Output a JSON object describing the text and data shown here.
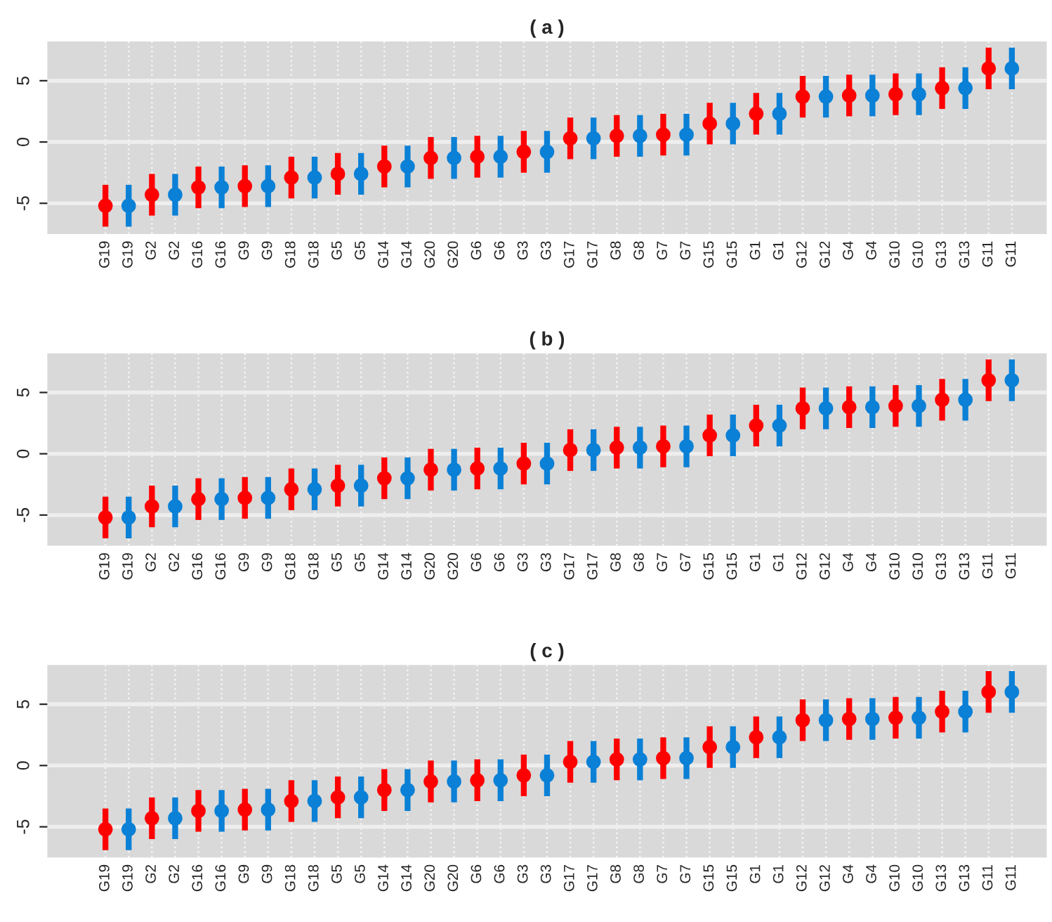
{
  "chart_data": [
    {
      "type": "scatter",
      "title": "( a )",
      "categories": [
        "G19",
        "G19",
        "G2",
        "G2",
        "G16",
        "G16",
        "G9",
        "G9",
        "G18",
        "G18",
        "G5",
        "G5",
        "G14",
        "G14",
        "G20",
        "G20",
        "G6",
        "G6",
        "G3",
        "G3",
        "G17",
        "G17",
        "G8",
        "G8",
        "G7",
        "G7",
        "G15",
        "G15",
        "G1",
        "G1",
        "G12",
        "G12",
        "G4",
        "G4",
        "G10",
        "G10",
        "G13",
        "G13",
        "G11",
        "G11"
      ],
      "values": [
        -5.2,
        -5.2,
        -4.3,
        -4.3,
        -3.7,
        -3.7,
        -3.6,
        -3.6,
        -2.9,
        -2.9,
        -2.6,
        -2.6,
        -2.0,
        -2.0,
        -1.3,
        -1.3,
        -1.2,
        -1.2,
        -0.8,
        -0.8,
        0.3,
        0.3,
        0.5,
        0.5,
        0.6,
        0.6,
        1.5,
        1.5,
        2.3,
        2.3,
        3.7,
        3.7,
        3.8,
        3.8,
        3.9,
        3.9,
        4.4,
        4.4,
        6.0,
        6.0
      ],
      "colors": [
        "#ff0000",
        "#0a80d6",
        "#ff0000",
        "#0a80d6",
        "#ff0000",
        "#0a80d6",
        "#ff0000",
        "#0a80d6",
        "#ff0000",
        "#0a80d6",
        "#ff0000",
        "#0a80d6",
        "#ff0000",
        "#0a80d6",
        "#ff0000",
        "#0a80d6",
        "#ff0000",
        "#0a80d6",
        "#ff0000",
        "#0a80d6",
        "#ff0000",
        "#0a80d6",
        "#ff0000",
        "#0a80d6",
        "#ff0000",
        "#0a80d6",
        "#ff0000",
        "#0a80d6",
        "#ff0000",
        "#0a80d6",
        "#ff0000",
        "#0a80d6",
        "#ff0000",
        "#0a80d6",
        "#ff0000",
        "#0a80d6",
        "#ff0000",
        "#0a80d6",
        "#ff0000",
        "#0a80d6"
      ],
      "errors": [
        1.7,
        1.7,
        1.7,
        1.7,
        1.7,
        1.7,
        1.7,
        1.7,
        1.7,
        1.7,
        1.7,
        1.7,
        1.7,
        1.7,
        1.7,
        1.7,
        1.7,
        1.7,
        1.7,
        1.7,
        1.7,
        1.7,
        1.7,
        1.7,
        1.7,
        1.7,
        1.7,
        1.7,
        1.7,
        1.7,
        1.7,
        1.7,
        1.7,
        1.7,
        1.7,
        1.7,
        1.7,
        1.7,
        1.7,
        1.7
      ],
      "ylim": [
        -7.5,
        8.2
      ],
      "yticks": [
        -5,
        0,
        5
      ],
      "grid": true,
      "marker": "circle"
    },
    {
      "type": "scatter",
      "title": "( b )",
      "categories": [
        "G19",
        "G19",
        "G2",
        "G2",
        "G16",
        "G16",
        "G9",
        "G9",
        "G18",
        "G18",
        "G5",
        "G5",
        "G14",
        "G14",
        "G20",
        "G20",
        "G6",
        "G6",
        "G3",
        "G3",
        "G17",
        "G17",
        "G8",
        "G8",
        "G7",
        "G7",
        "G15",
        "G15",
        "G1",
        "G1",
        "G12",
        "G12",
        "G4",
        "G4",
        "G10",
        "G10",
        "G13",
        "G13",
        "G11",
        "G11"
      ],
      "values": [
        -5.2,
        -5.2,
        -4.3,
        -4.3,
        -3.7,
        -3.7,
        -3.6,
        -3.6,
        -2.9,
        -2.9,
        -2.6,
        -2.6,
        -2.0,
        -2.0,
        -1.3,
        -1.3,
        -1.2,
        -1.2,
        -0.8,
        -0.8,
        0.3,
        0.3,
        0.5,
        0.5,
        0.6,
        0.6,
        1.5,
        1.5,
        2.3,
        2.3,
        3.7,
        3.7,
        3.8,
        3.8,
        3.9,
        3.9,
        4.4,
        4.4,
        6.0,
        6.0
      ],
      "colors": [
        "#ff0000",
        "#0a80d6",
        "#ff0000",
        "#0a80d6",
        "#ff0000",
        "#0a80d6",
        "#ff0000",
        "#0a80d6",
        "#ff0000",
        "#0a80d6",
        "#ff0000",
        "#0a80d6",
        "#ff0000",
        "#0a80d6",
        "#ff0000",
        "#0a80d6",
        "#ff0000",
        "#0a80d6",
        "#ff0000",
        "#0a80d6",
        "#ff0000",
        "#0a80d6",
        "#ff0000",
        "#0a80d6",
        "#ff0000",
        "#0a80d6",
        "#ff0000",
        "#0a80d6",
        "#ff0000",
        "#0a80d6",
        "#ff0000",
        "#0a80d6",
        "#ff0000",
        "#0a80d6",
        "#ff0000",
        "#0a80d6",
        "#ff0000",
        "#0a80d6",
        "#ff0000",
        "#0a80d6"
      ],
      "errors": [
        1.7,
        1.7,
        1.7,
        1.7,
        1.7,
        1.7,
        1.7,
        1.7,
        1.7,
        1.7,
        1.7,
        1.7,
        1.7,
        1.7,
        1.7,
        1.7,
        1.7,
        1.7,
        1.7,
        1.7,
        1.7,
        1.7,
        1.7,
        1.7,
        1.7,
        1.7,
        1.7,
        1.7,
        1.7,
        1.7,
        1.7,
        1.7,
        1.7,
        1.7,
        1.7,
        1.7,
        1.7,
        1.7,
        1.7,
        1.7
      ],
      "ylim": [
        -7.5,
        8.2
      ],
      "yticks": [
        -5,
        0,
        5
      ],
      "grid": true,
      "marker": "circle"
    },
    {
      "type": "scatter",
      "title": "( c )",
      "categories": [
        "G19",
        "G19",
        "G2",
        "G2",
        "G16",
        "G16",
        "G9",
        "G9",
        "G18",
        "G18",
        "G5",
        "G5",
        "G14",
        "G14",
        "G20",
        "G20",
        "G6",
        "G6",
        "G3",
        "G3",
        "G17",
        "G17",
        "G8",
        "G8",
        "G7",
        "G7",
        "G15",
        "G15",
        "G1",
        "G1",
        "G12",
        "G12",
        "G4",
        "G4",
        "G10",
        "G10",
        "G13",
        "G13",
        "G11",
        "G11"
      ],
      "values": [
        -5.2,
        -5.2,
        -4.3,
        -4.3,
        -3.7,
        -3.7,
        -3.6,
        -3.6,
        -2.9,
        -2.9,
        -2.6,
        -2.6,
        -2.0,
        -2.0,
        -1.3,
        -1.3,
        -1.2,
        -1.2,
        -0.8,
        -0.8,
        0.3,
        0.3,
        0.5,
        0.5,
        0.6,
        0.6,
        1.5,
        1.5,
        2.3,
        2.3,
        3.7,
        3.7,
        3.8,
        3.8,
        3.9,
        3.9,
        4.4,
        4.4,
        6.0,
        6.0
      ],
      "colors": [
        "#ff0000",
        "#0a80d6",
        "#ff0000",
        "#0a80d6",
        "#ff0000",
        "#0a80d6",
        "#ff0000",
        "#0a80d6",
        "#ff0000",
        "#0a80d6",
        "#ff0000",
        "#0a80d6",
        "#ff0000",
        "#0a80d6",
        "#ff0000",
        "#0a80d6",
        "#ff0000",
        "#0a80d6",
        "#ff0000",
        "#0a80d6",
        "#ff0000",
        "#0a80d6",
        "#ff0000",
        "#0a80d6",
        "#ff0000",
        "#0a80d6",
        "#ff0000",
        "#0a80d6",
        "#ff0000",
        "#0a80d6",
        "#ff0000",
        "#0a80d6",
        "#ff0000",
        "#0a80d6",
        "#ff0000",
        "#0a80d6",
        "#ff0000",
        "#0a80d6",
        "#ff0000",
        "#0a80d6"
      ],
      "errors": [
        1.7,
        1.7,
        1.7,
        1.7,
        1.7,
        1.7,
        1.7,
        1.7,
        1.7,
        1.7,
        1.7,
        1.7,
        1.7,
        1.7,
        1.7,
        1.7,
        1.7,
        1.7,
        1.7,
        1.7,
        1.7,
        1.7,
        1.7,
        1.7,
        1.7,
        1.7,
        1.7,
        1.7,
        1.7,
        1.7,
        1.7,
        1.7,
        1.7,
        1.7,
        1.7,
        1.7,
        1.7,
        1.7,
        1.7,
        1.7
      ],
      "ylim": [
        -7.5,
        8.2
      ],
      "yticks": [
        -5,
        0,
        5
      ],
      "grid": true,
      "marker": "circle"
    }
  ]
}
